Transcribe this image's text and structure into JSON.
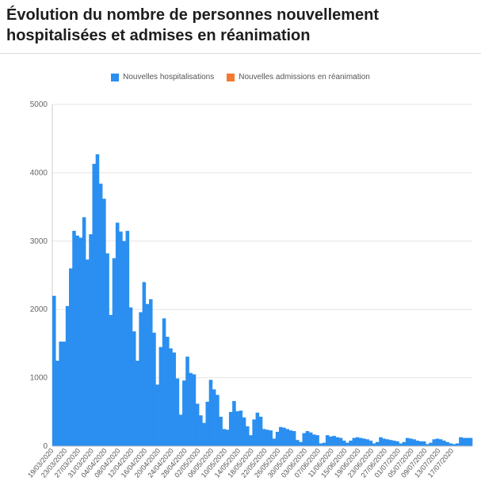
{
  "header": {
    "title_line1": "Évolution du nombre de personnes nouvellement",
    "title_line2": "hospitalisées et admises en réanimation"
  },
  "legend": {
    "items": [
      {
        "label": "Nouvelles hospitalisations",
        "color": "#2a8ff0"
      },
      {
        "label": "Nouvelles admissions en réanimation",
        "color": "#f47a2e"
      }
    ]
  },
  "chart_data": {
    "type": "bar",
    "start_date": "19/03/2020",
    "end_date": "17/07/2020",
    "ylim": [
      0,
      5000
    ],
    "yticks": [
      0,
      1000,
      2000,
      3000,
      4000,
      5000
    ],
    "xtick_labels": [
      "19/03/2020",
      "23/03/2020",
      "27/03/2020",
      "31/03/2020",
      "04/04/2020",
      "08/04/2020",
      "12/04/2020",
      "16/04/2020",
      "20/04/2020",
      "24/04/2020",
      "28/04/2020",
      "02/05/2020",
      "06/05/2020",
      "10/05/2020",
      "14/05/2020",
      "18/05/2020",
      "22/05/2020",
      "26/05/2020",
      "30/05/2020",
      "03/06/2020",
      "07/06/2020",
      "11/06/2020",
      "15/06/2020",
      "19/06/2020",
      "23/06/2020",
      "27/06/2020",
      "01/07/2020",
      "05/07/2020",
      "09/07/2020",
      "13/07/2020",
      "17/07/2020"
    ],
    "series": [
      {
        "name": "Nouvelles hospitalisations",
        "color": "#2a8ff0",
        "values": [
          2200,
          1250,
          1530,
          1530,
          2050,
          2600,
          3150,
          3080,
          3050,
          3350,
          2730,
          3100,
          4130,
          4270,
          3840,
          3620,
          2820,
          1920,
          2750,
          3270,
          3140,
          3000,
          3150,
          2030,
          1680,
          1250,
          1960,
          2400,
          2080,
          2150,
          1660,
          900,
          1450,
          1870,
          1600,
          1430,
          1370,
          990,
          460,
          960,
          1310,
          1070,
          1050,
          620,
          450,
          340,
          650,
          970,
          830,
          750,
          430,
          250,
          240,
          500,
          660,
          510,
          520,
          420,
          290,
          160,
          390,
          490,
          430,
          250,
          240,
          230,
          110,
          210,
          280,
          270,
          250,
          230,
          220,
          90,
          60,
          190,
          220,
          200,
          170,
          160,
          40,
          50,
          160,
          140,
          150,
          130,
          120,
          80,
          50,
          80,
          120,
          130,
          120,
          110,
          100,
          80,
          40,
          60,
          130,
          110,
          100,
          90,
          80,
          70,
          40,
          60,
          120,
          110,
          100,
          80,
          70,
          70,
          30,
          50,
          100,
          110,
          100,
          80,
          60,
          40,
          30,
          40,
          130,
          120,
          120,
          120
        ],
        "orientation": "bar"
      },
      {
        "name": "Nouvelles admissions en réanimation",
        "color": "#f47a2e",
        "values": []
      }
    ]
  }
}
